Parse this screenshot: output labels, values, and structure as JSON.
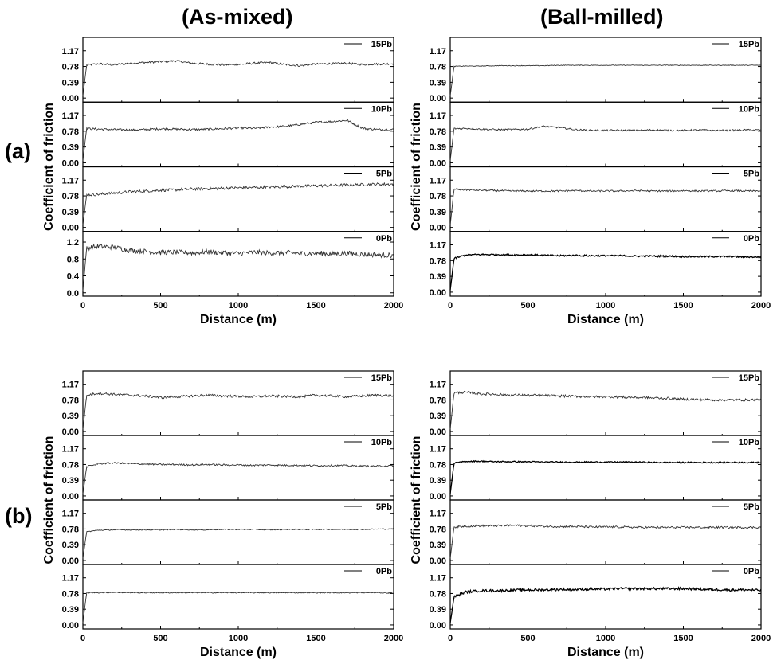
{
  "column_titles": [
    "(As-mixed)",
    "(Ball-milled)"
  ],
  "row_labels": [
    "(a)",
    "(b)"
  ],
  "chart_data": [
    {
      "type": "line",
      "group": "(a)",
      "column": "(As-mixed)",
      "xlabel": "Distance (m)",
      "ylabel": "Coefficient of friction",
      "xlim": [
        0,
        2000
      ],
      "xticks": [
        0,
        500,
        1000,
        1500,
        2000
      ],
      "panels": [
        {
          "name": "15Pb",
          "yticks": [
            "0.00",
            "0.39",
            "0.78",
            "1.17"
          ],
          "ylim": [
            -0.1,
            1.5
          ],
          "values": [
            0.8,
            0.85,
            0.82,
            0.86,
            0.88,
            0.9,
            0.92,
            0.86,
            0.84,
            0.82,
            0.83,
            0.86,
            0.88,
            0.83,
            0.8,
            0.84,
            0.85,
            0.86,
            0.83,
            0.84,
            0.85
          ]
        },
        {
          "name": "10Pb",
          "yticks": [
            "0.00",
            "0.39",
            "0.78",
            "1.17"
          ],
          "ylim": [
            -0.1,
            1.5
          ],
          "values": [
            0.85,
            0.83,
            0.82,
            0.81,
            0.82,
            0.84,
            0.83,
            0.82,
            0.83,
            0.84,
            0.86,
            0.85,
            0.88,
            0.9,
            0.95,
            1.0,
            1.02,
            1.05,
            0.85,
            0.82,
            0.82
          ]
        },
        {
          "name": "5Pb",
          "yticks": [
            "0.00",
            "0.39",
            "0.78",
            "1.17"
          ],
          "ylim": [
            -0.1,
            1.5
          ],
          "values": [
            0.8,
            0.82,
            0.85,
            0.88,
            0.9,
            0.92,
            0.93,
            0.95,
            0.96,
            0.97,
            0.98,
            0.99,
            1.0,
            1.01,
            1.02,
            1.03,
            1.04,
            1.05,
            1.06,
            1.07,
            1.07
          ]
        },
        {
          "name": "0Pb",
          "yticks": [
            "0.0",
            "0.4",
            "0.8",
            "1.2"
          ],
          "ylim": [
            -0.08,
            1.45
          ],
          "values": [
            1.05,
            1.1,
            1.08,
            1.0,
            0.98,
            0.95,
            0.96,
            0.94,
            0.97,
            0.95,
            0.93,
            0.96,
            0.94,
            0.95,
            0.93,
            0.94,
            0.92,
            0.93,
            0.91,
            0.9,
            0.88
          ]
        }
      ]
    },
    {
      "type": "line",
      "group": "(a)",
      "column": "(Ball-milled)",
      "xlabel": "Distance (m)",
      "ylabel": "Coefficient of friction",
      "xlim": [
        0,
        2000
      ],
      "xticks": [
        0,
        500,
        1000,
        1500,
        2000
      ],
      "panels": [
        {
          "name": "15Pb",
          "yticks": [
            "0.00",
            "0.39",
            "0.78",
            "1.17"
          ],
          "ylim": [
            -0.1,
            1.5
          ],
          "values": [
            0.78,
            0.79,
            0.79,
            0.8,
            0.8,
            0.8,
            0.8,
            0.81,
            0.81,
            0.81,
            0.81,
            0.81,
            0.81,
            0.81,
            0.81,
            0.81,
            0.81,
            0.81,
            0.81,
            0.81,
            0.81
          ]
        },
        {
          "name": "10Pb",
          "yticks": [
            "0.00",
            "0.39",
            "0.78",
            "1.17"
          ],
          "ylim": [
            -0.1,
            1.5
          ],
          "values": [
            0.84,
            0.85,
            0.83,
            0.82,
            0.82,
            0.83,
            0.9,
            0.87,
            0.82,
            0.8,
            0.8,
            0.8,
            0.8,
            0.81,
            0.8,
            0.8,
            0.81,
            0.8,
            0.8,
            0.81,
            0.81
          ]
        },
        {
          "name": "5Pb",
          "yticks": [
            "0.00",
            "0.39",
            "0.78",
            "1.17"
          ],
          "ylim": [
            -0.1,
            1.5
          ],
          "values": [
            0.95,
            0.93,
            0.92,
            0.91,
            0.9,
            0.9,
            0.9,
            0.9,
            0.91,
            0.9,
            0.9,
            0.9,
            0.91,
            0.9,
            0.9,
            0.91,
            0.9,
            0.9,
            0.91,
            0.9,
            0.9
          ]
        },
        {
          "name": "0Pb",
          "yticks": [
            "0.00",
            "0.39",
            "0.78",
            "1.17"
          ],
          "ylim": [
            -0.1,
            1.5
          ],
          "values": [
            0.8,
            0.92,
            0.93,
            0.93,
            0.92,
            0.92,
            0.91,
            0.9,
            0.91,
            0.9,
            0.9,
            0.9,
            0.89,
            0.89,
            0.89,
            0.88,
            0.88,
            0.88,
            0.88,
            0.87,
            0.87
          ]
        }
      ]
    },
    {
      "type": "line",
      "group": "(b)",
      "column": "(As-mixed)",
      "xlabel": "Distance (m)",
      "ylabel": "Coefficient of friction",
      "xlim": [
        0,
        2000
      ],
      "xticks": [
        0,
        500,
        1000,
        1500,
        2000
      ],
      "panels": [
        {
          "name": "15Pb",
          "yticks": [
            "0.00",
            "0.39",
            "0.78",
            "1.17"
          ],
          "ylim": [
            -0.1,
            1.5
          ],
          "values": [
            0.88,
            0.95,
            0.92,
            0.9,
            0.88,
            0.84,
            0.86,
            0.88,
            0.9,
            0.88,
            0.87,
            0.86,
            0.88,
            0.87,
            0.86,
            0.9,
            0.88,
            0.86,
            0.88,
            0.9,
            0.88
          ]
        },
        {
          "name": "10Pb",
          "yticks": [
            "0.00",
            "0.39",
            "0.78",
            "1.17"
          ],
          "ylim": [
            -0.1,
            1.5
          ],
          "values": [
            0.7,
            0.8,
            0.82,
            0.8,
            0.79,
            0.78,
            0.78,
            0.77,
            0.78,
            0.77,
            0.77,
            0.76,
            0.77,
            0.76,
            0.76,
            0.75,
            0.76,
            0.75,
            0.74,
            0.74,
            0.75
          ]
        },
        {
          "name": "5Pb",
          "yticks": [
            "0.00",
            "0.39",
            "0.78",
            "1.17"
          ],
          "ylim": [
            -0.1,
            1.5
          ],
          "values": [
            0.7,
            0.75,
            0.76,
            0.76,
            0.76,
            0.76,
            0.77,
            0.76,
            0.76,
            0.77,
            0.77,
            0.77,
            0.76,
            0.77,
            0.77,
            0.77,
            0.77,
            0.77,
            0.77,
            0.78,
            0.78
          ]
        },
        {
          "name": "0Pb",
          "yticks": [
            "0.00",
            "0.39",
            "0.78",
            "1.17"
          ],
          "ylim": [
            -0.1,
            1.5
          ],
          "values": [
            0.8,
            0.8,
            0.81,
            0.8,
            0.8,
            0.8,
            0.8,
            0.8,
            0.8,
            0.8,
            0.8,
            0.8,
            0.8,
            0.8,
            0.8,
            0.8,
            0.8,
            0.8,
            0.8,
            0.8,
            0.79
          ]
        }
      ]
    },
    {
      "type": "line",
      "group": "(b)",
      "column": "(Ball-milled)",
      "xlabel": "Distance (m)",
      "ylabel": "Coefficient of friction",
      "xlim": [
        0,
        2000
      ],
      "xticks": [
        0,
        500,
        1000,
        1500,
        2000
      ],
      "panels": [
        {
          "name": "15Pb",
          "yticks": [
            "0.00",
            "0.39",
            "0.78",
            "1.17"
          ],
          "ylim": [
            -0.1,
            1.5
          ],
          "values": [
            0.95,
            0.97,
            0.93,
            0.92,
            0.9,
            0.9,
            0.89,
            0.88,
            0.87,
            0.86,
            0.86,
            0.85,
            0.84,
            0.83,
            0.82,
            0.8,
            0.79,
            0.78,
            0.78,
            0.78,
            0.79
          ]
        },
        {
          "name": "10Pb",
          "yticks": [
            "0.00",
            "0.39",
            "0.78",
            "1.17"
          ],
          "ylim": [
            -0.1,
            1.5
          ],
          "values": [
            0.8,
            0.86,
            0.86,
            0.85,
            0.85,
            0.85,
            0.84,
            0.84,
            0.84,
            0.84,
            0.84,
            0.84,
            0.84,
            0.83,
            0.83,
            0.83,
            0.83,
            0.83,
            0.83,
            0.83,
            0.83
          ]
        },
        {
          "name": "5Pb",
          "yticks": [
            "0.00",
            "0.39",
            "0.78",
            "1.17"
          ],
          "ylim": [
            -0.1,
            1.5
          ],
          "values": [
            0.82,
            0.85,
            0.86,
            0.86,
            0.87,
            0.86,
            0.85,
            0.84,
            0.84,
            0.83,
            0.83,
            0.83,
            0.82,
            0.82,
            0.82,
            0.82,
            0.82,
            0.82,
            0.82,
            0.82,
            0.82
          ]
        },
        {
          "name": "0Pb",
          "yticks": [
            "0.00",
            "0.39",
            "0.78",
            "1.17"
          ],
          "ylim": [
            -0.1,
            1.5
          ],
          "values": [
            0.65,
            0.82,
            0.85,
            0.85,
            0.86,
            0.87,
            0.87,
            0.88,
            0.88,
            0.89,
            0.89,
            0.9,
            0.9,
            0.9,
            0.9,
            0.9,
            0.89,
            0.88,
            0.87,
            0.87,
            0.86
          ]
        }
      ]
    }
  ]
}
